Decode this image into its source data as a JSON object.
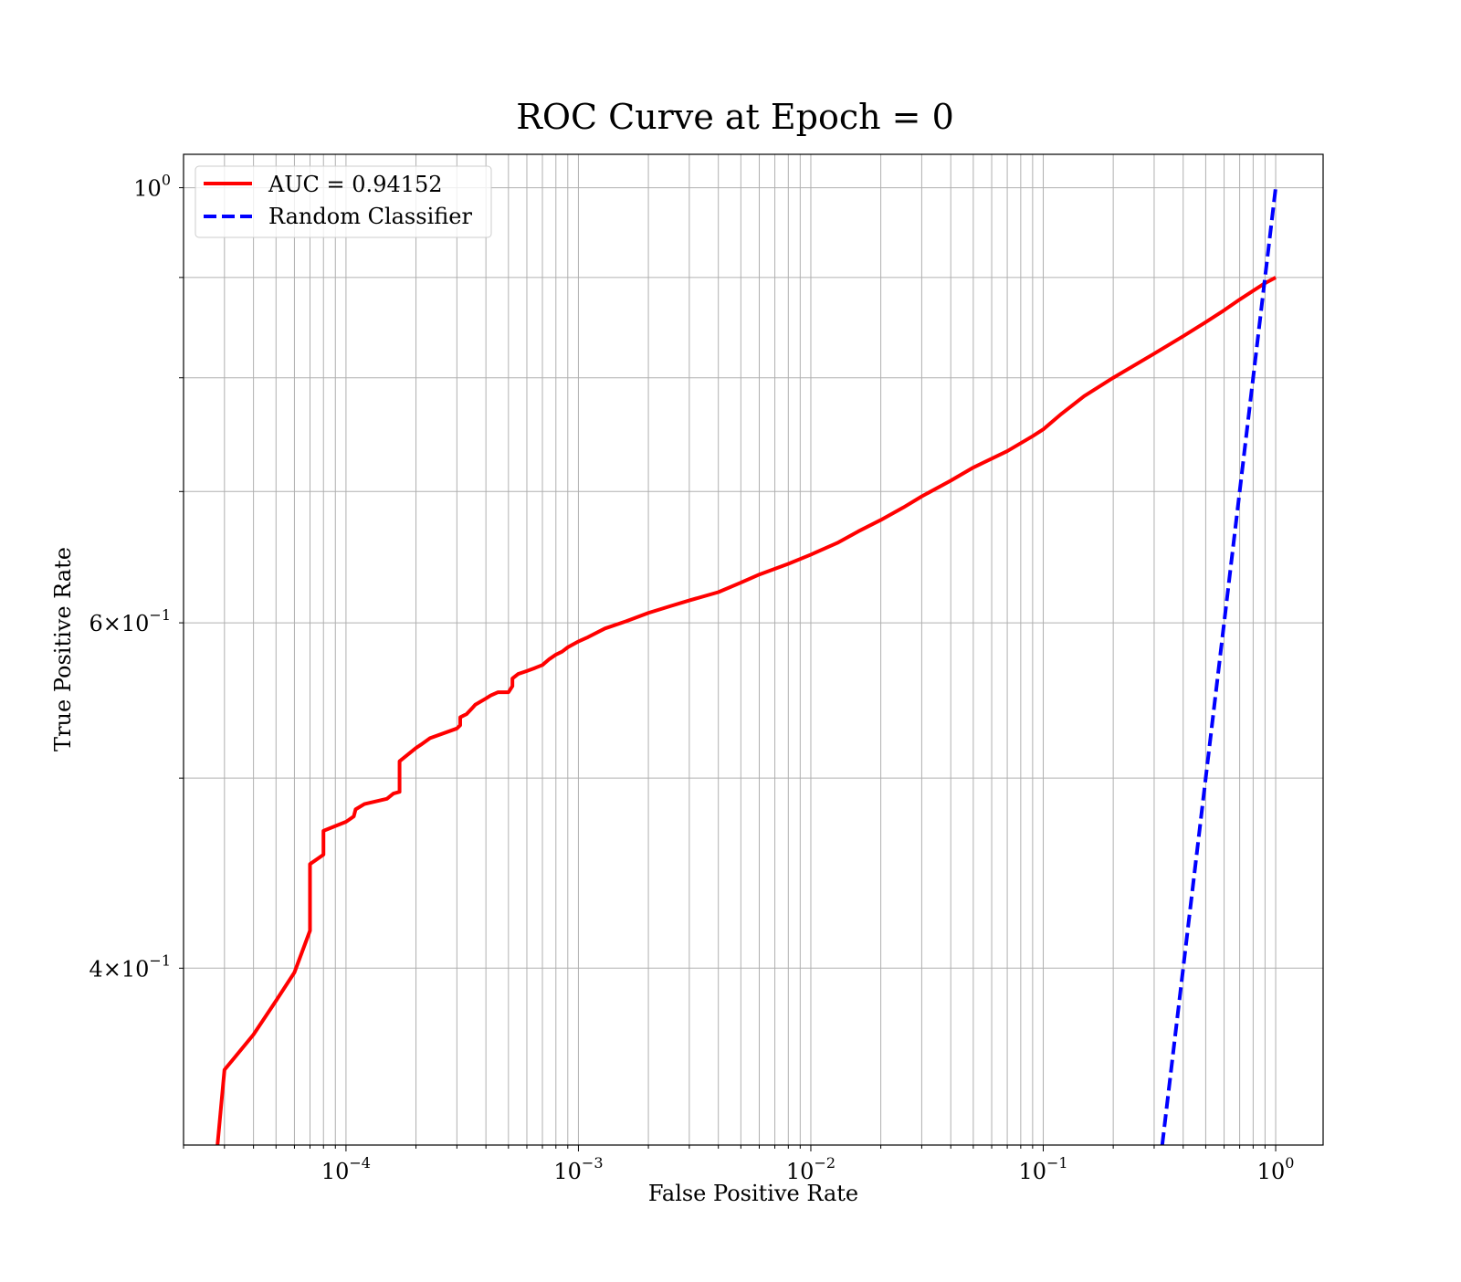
{
  "chart_data": {
    "type": "line",
    "title": "ROC Curve at Epoch = 0",
    "xlabel": "False Positive Rate",
    "ylabel": "True Positive Rate",
    "xscale": "log",
    "yscale": "log",
    "xlim": [
      2e-05,
      1.6
    ],
    "ylim": [
      0.325,
      1.04
    ],
    "grid": "both (major and minor)",
    "legend_position": "top-left",
    "x_ticks": [
      {
        "base": "10",
        "exp": "−4",
        "value": 0.0001
      },
      {
        "base": "10",
        "exp": "−3",
        "value": 0.001
      },
      {
        "base": "10",
        "exp": "−2",
        "value": 0.01
      },
      {
        "base": "10",
        "exp": "−1",
        "value": 0.1
      },
      {
        "base": "10",
        "exp": "0",
        "value": 1
      }
    ],
    "y_ticks": [
      {
        "base": "4×10",
        "exp": "−1",
        "value": 0.4
      },
      {
        "base": "6×10",
        "exp": "−1",
        "value": 0.6
      },
      {
        "base": "10",
        "exp": "0",
        "value": 1
      }
    ],
    "series": [
      {
        "name": "AUC = 0.94152",
        "color": "#ff0000",
        "style": "solid",
        "x": [
          2.8e-05,
          3e-05,
          4e-05,
          5e-05,
          6e-05,
          7e-05,
          7e-05,
          8e-05,
          8e-05,
          0.0001,
          0.000108,
          0.00011,
          0.00012,
          0.00015,
          0.00016,
          0.00017,
          0.00017,
          0.0002,
          0.00021,
          0.00023,
          0.0003,
          0.00031,
          0.00031,
          0.00033,
          0.00035,
          0.00036,
          0.0004,
          0.00042,
          0.00045,
          0.0005,
          0.00052,
          0.00052,
          0.00055,
          0.0006,
          0.00065,
          0.0007,
          0.00075,
          0.0008,
          0.00085,
          0.0009,
          0.001,
          0.0011,
          0.0013,
          0.0016,
          0.002,
          0.0025,
          0.003,
          0.004,
          0.005,
          0.006,
          0.008,
          0.01,
          0.013,
          0.016,
          0.02,
          0.025,
          0.03,
          0.04,
          0.05,
          0.07,
          0.09,
          0.1,
          0.12,
          0.15,
          0.2,
          0.3,
          0.4,
          0.5,
          0.6,
          0.7,
          0.8,
          0.9,
          1.0
        ],
        "y": [
          0.325,
          0.355,
          0.37,
          0.385,
          0.398,
          0.418,
          0.452,
          0.457,
          0.47,
          0.475,
          0.478,
          0.482,
          0.485,
          0.488,
          0.491,
          0.492,
          0.51,
          0.518,
          0.52,
          0.524,
          0.53,
          0.532,
          0.537,
          0.539,
          0.543,
          0.545,
          0.549,
          0.551,
          0.553,
          0.553,
          0.557,
          0.562,
          0.565,
          0.567,
          0.569,
          0.571,
          0.575,
          0.578,
          0.58,
          0.583,
          0.587,
          0.59,
          0.596,
          0.601,
          0.607,
          0.612,
          0.616,
          0.622,
          0.629,
          0.635,
          0.643,
          0.65,
          0.659,
          0.668,
          0.677,
          0.687,
          0.696,
          0.709,
          0.72,
          0.734,
          0.747,
          0.753,
          0.767,
          0.783,
          0.8,
          0.823,
          0.84,
          0.854,
          0.866,
          0.877,
          0.886,
          0.894,
          0.9
        ],
        "line_width": 4
      },
      {
        "name": "Random Classifier",
        "color": "#0000ff",
        "style": "dashed",
        "x": [
          0.325,
          1.0
        ],
        "y": [
          0.325,
          1.0
        ],
        "line_width": 4
      }
    ]
  }
}
